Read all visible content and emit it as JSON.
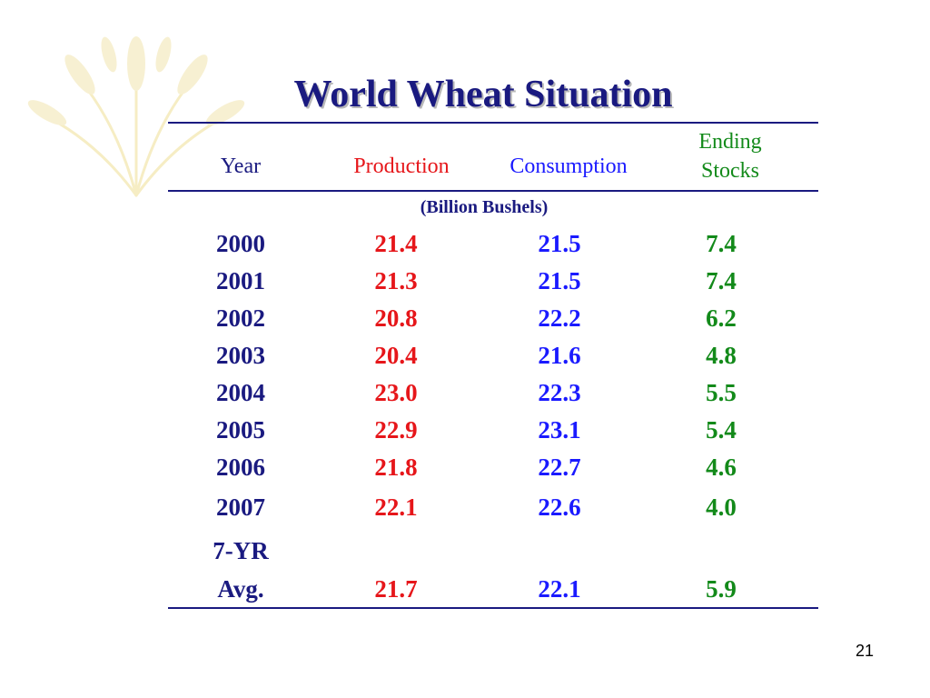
{
  "slide": {
    "title": "World Wheat Situation",
    "page_number": "21"
  },
  "table": {
    "headers": {
      "year": "Year",
      "production": "Production",
      "consumption": "Consumption",
      "ending_stocks_line1": "Ending",
      "ending_stocks_line2": "Stocks"
    },
    "units": "(Billion Bushels)",
    "rows": [
      {
        "year": "2000",
        "production": "21.4",
        "consumption": "21.5",
        "ending_stocks": "7.4"
      },
      {
        "year": "2001",
        "production": "21.3",
        "consumption": "21.5",
        "ending_stocks": "7.4"
      },
      {
        "year": "2002",
        "production": "20.8",
        "consumption": "22.2",
        "ending_stocks": "6.2"
      },
      {
        "year": "2003",
        "production": "20.4",
        "consumption": "21.6",
        "ending_stocks": "4.8"
      },
      {
        "year": "2004",
        "production": "23.0",
        "consumption": "22.3",
        "ending_stocks": "5.5"
      },
      {
        "year": "2005",
        "production": "22.9",
        "consumption": "23.1",
        "ending_stocks": "5.4"
      },
      {
        "year": "2006",
        "production": "21.8",
        "consumption": "22.7",
        "ending_stocks": "4.6"
      },
      {
        "year": "2007",
        "production": "22.1",
        "consumption": "22.6",
        "ending_stocks": "4.0"
      }
    ],
    "average": {
      "label_line1": "7-YR",
      "label_line2": "Avg.",
      "production": "21.7",
      "consumption": "22.1",
      "ending_stocks": "5.9"
    }
  },
  "colors": {
    "title": "#1a1a80",
    "production": "#e6161a",
    "consumption": "#1a1aff",
    "ending_stocks": "#138a1a"
  }
}
